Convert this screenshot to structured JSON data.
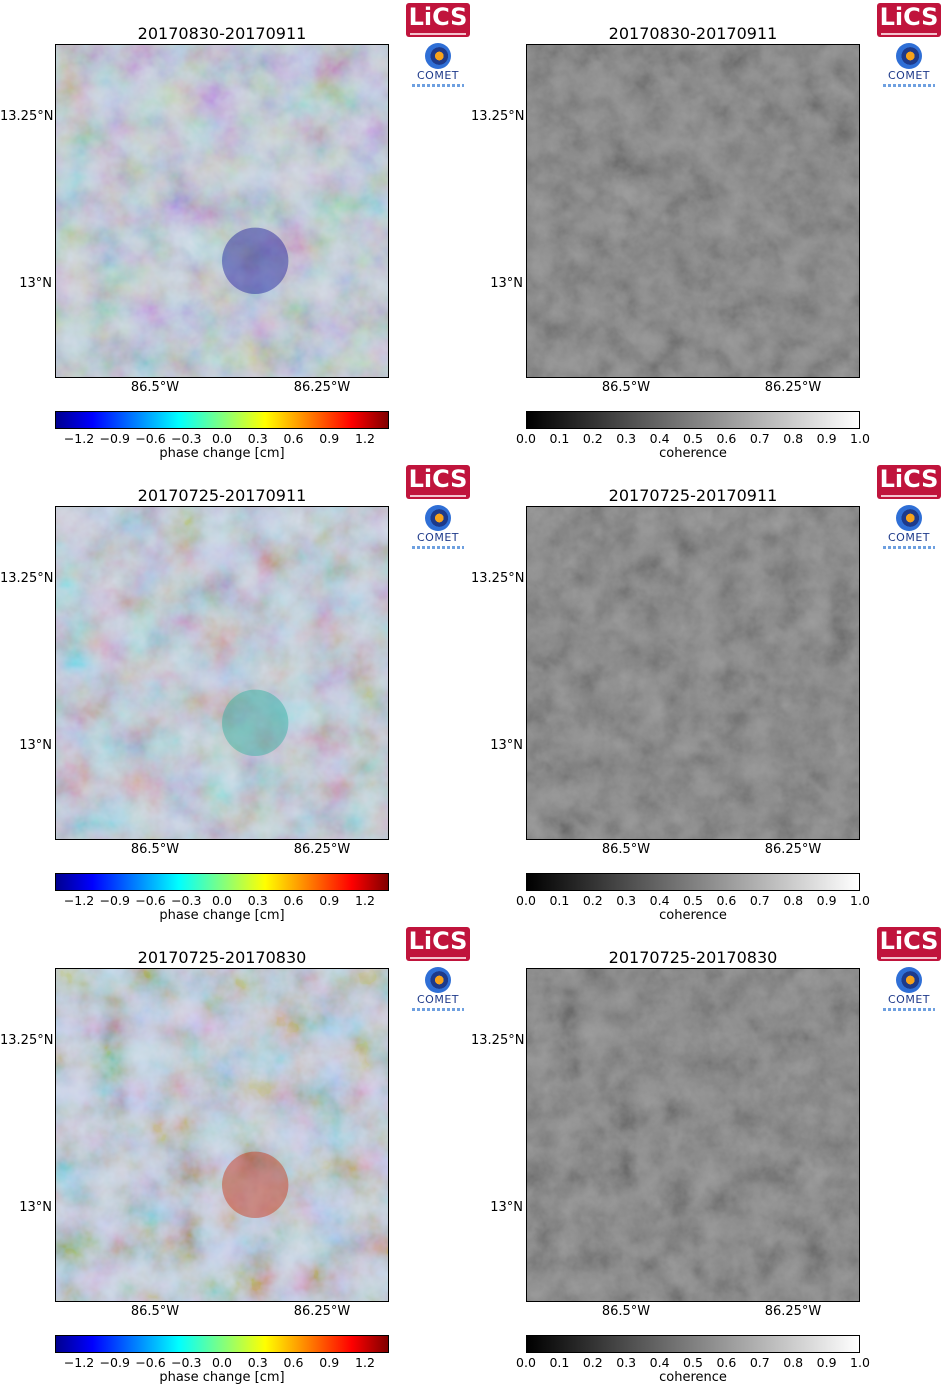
{
  "colors": {
    "lics_red": "#c0143c",
    "comet_blue": "#1e3a8a",
    "comet_orange": "#f7a21b"
  },
  "logos": {
    "lics": "LiCS",
    "comet": "COMET",
    "comet_icon": "comet-logo-icon"
  },
  "axes": {
    "lat_labels": [
      "13.25°N",
      "13°N"
    ],
    "lon_labels": [
      "86.5°W",
      "86.25°W"
    ]
  },
  "phase_colorbar": {
    "label": "phase change [cm]",
    "ticks": [
      "−1.2",
      "−0.9",
      "−0.6",
      "−0.3",
      "0.0",
      "0.3",
      "0.6",
      "0.9",
      "1.2"
    ],
    "colors": [
      "#00008f",
      "#0000ff",
      "#0080ff",
      "#00ffff",
      "#80ff80",
      "#ffff00",
      "#ff8000",
      "#ff0000",
      "#800000"
    ]
  },
  "coherence_colorbar": {
    "label": "coherence",
    "ticks": [
      "0.0",
      "0.1",
      "0.2",
      "0.3",
      "0.4",
      "0.5",
      "0.6",
      "0.7",
      "0.8",
      "0.9",
      "1.0"
    ],
    "colors": [
      "#000000",
      "#ffffff"
    ]
  },
  "rows": [
    {
      "title": "20170830-20170911"
    },
    {
      "title": "20170725-20170911"
    },
    {
      "title": "20170725-20170830"
    }
  ]
}
